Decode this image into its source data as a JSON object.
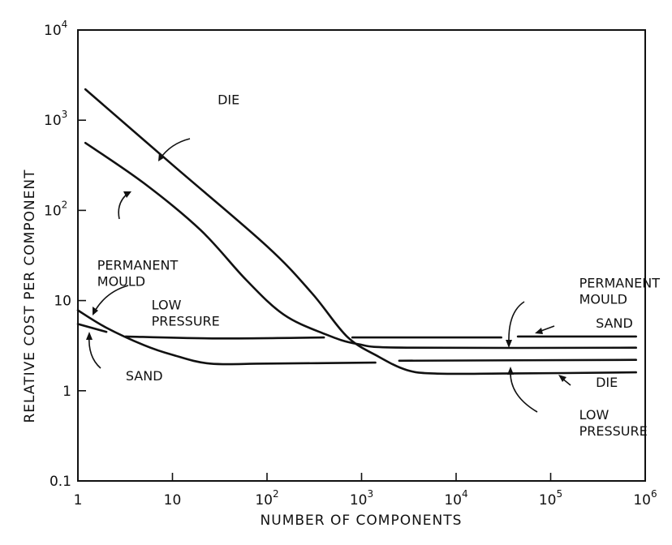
{
  "chart_data": {
    "type": "line",
    "xlabel": "NUMBER  OF COMPONENTS",
    "ylabel": "RELATIVE  COST PER COMPONENT",
    "x_scale": "log",
    "y_scale": "log",
    "xlim": [
      1,
      1000000
    ],
    "ylim": [
      0.1,
      10000
    ],
    "grid": false,
    "x_ticks": [
      {
        "base": "1",
        "exp": ""
      },
      {
        "base": "10",
        "exp": ""
      },
      {
        "base": "10",
        "exp": "2"
      },
      {
        "base": "10",
        "exp": "3"
      },
      {
        "base": "10",
        "exp": "4"
      },
      {
        "base": "10",
        "exp": "5"
      },
      {
        "base": "10",
        "exp": "6"
      }
    ],
    "y_ticks": [
      {
        "base": "0.1",
        "exp": ""
      },
      {
        "base": "1",
        "exp": ""
      },
      {
        "base": "10",
        "exp": ""
      },
      {
        "base": "10",
        "exp": "2"
      },
      {
        "base": "10",
        "exp": "3"
      },
      {
        "base": "10",
        "exp": "4"
      }
    ],
    "series": [
      {
        "name": "DIE",
        "points": [
          [
            1.2,
            2200
          ],
          [
            10,
            320
          ],
          [
            100,
            40
          ],
          [
            300,
            12
          ],
          [
            700,
            4
          ],
          [
            1500,
            2.4
          ],
          [
            3000,
            1.7
          ],
          [
            6000,
            1.55
          ],
          [
            30000,
            1.55
          ],
          [
            800000,
            1.6
          ]
        ]
      },
      {
        "name": "PERMANENT MOULD",
        "points": [
          [
            1.2,
            560
          ],
          [
            5,
            200
          ],
          [
            20,
            60
          ],
          [
            60,
            17
          ],
          [
            150,
            7
          ],
          [
            400,
            4.3
          ],
          [
            900,
            3.3
          ],
          [
            3000,
            3.0
          ],
          [
            800000,
            3.0
          ]
        ]
      },
      {
        "name": "LOW PRESSURE",
        "points": [
          [
            1,
            7.8
          ],
          [
            2,
            5
          ],
          [
            5,
            3.2
          ],
          [
            10,
            2.5
          ],
          [
            25,
            2.0
          ],
          [
            100,
            2.0
          ],
          [
            1400,
            2.05
          ]
        ]
      },
      {
        "name": "SAND",
        "points": [
          [
            1,
            5.5
          ],
          [
            2,
            4.5
          ]
        ]
      },
      {
        "name": "SAND",
        "points": [
          [
            3.2,
            4.0
          ],
          [
            30,
            3.8
          ],
          [
            400,
            3.9
          ]
        ]
      },
      {
        "name": "SAND",
        "points": [
          [
            800,
            3.9
          ],
          [
            30000,
            3.9
          ]
        ]
      },
      {
        "name": "SAND",
        "points": [
          [
            45000,
            4.0
          ],
          [
            800000,
            4.0
          ]
        ]
      },
      {
        "name": "LOW PRESSURE",
        "points": [
          [
            2500,
            2.15
          ],
          [
            800000,
            2.2
          ]
        ]
      }
    ],
    "annotations": [
      {
        "lines": [
          "DIE"
        ],
        "x": 30,
        "y": 1500
      },
      {
        "lines": [
          "PERMANENT",
          "MOULD"
        ],
        "x": 1.6,
        "y": 22
      },
      {
        "lines": [
          "LOW",
          "PRESSURE"
        ],
        "x": 6,
        "y": 8
      },
      {
        "lines": [
          "SAND"
        ],
        "x": 3.2,
        "y": 1.3
      },
      {
        "lines": [
          "PERMANENT",
          "MOULD"
        ],
        "x": 200000,
        "y": 14
      },
      {
        "lines": [
          "SAND"
        ],
        "x": 300000,
        "y": 5
      },
      {
        "lines": [
          "DIE"
        ],
        "x": 300000,
        "y": 1.1
      },
      {
        "lines": [
          "LOW",
          "PRESSURE"
        ],
        "x": 200000,
        "y": 0.48
      }
    ]
  }
}
